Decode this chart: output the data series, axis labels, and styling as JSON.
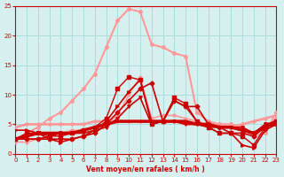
{
  "title": "",
  "xlabel": "Vent moyen/en rafales ( km/h )",
  "ylabel": "",
  "bg_color": "#d6f0f0",
  "grid_color": "#aadddd",
  "xmin": 0,
  "xmax": 23,
  "ymin": 0,
  "ymax": 25,
  "yticks": [
    0,
    5,
    10,
    15,
    20,
    25
  ],
  "xticks": [
    0,
    1,
    2,
    3,
    4,
    5,
    6,
    7,
    8,
    9,
    10,
    11,
    12,
    13,
    14,
    15,
    16,
    17,
    18,
    19,
    20,
    21,
    22,
    23
  ],
  "series": [
    {
      "x": [
        0,
        1,
        2,
        3,
        4,
        5,
        6,
        7,
        8,
        9,
        10,
        11,
        12,
        13,
        14,
        15,
        16,
        17,
        18,
        19,
        20,
        21,
        22,
        23
      ],
      "y": [
        2.5,
        2.5,
        2.5,
        2.5,
        2.5,
        2.5,
        3.0,
        3.5,
        5.0,
        7.0,
        9.0,
        11.0,
        12.0,
        5.5,
        9.0,
        8.0,
        8.0,
        5.0,
        4.5,
        3.5,
        3.5,
        3.0,
        4.5,
        5.0
      ],
      "color": "#cc0000",
      "lw": 1.2,
      "marker": "D",
      "ms": 2.5,
      "zorder": 5
    },
    {
      "x": [
        0,
        1,
        2,
        3,
        4,
        5,
        6,
        7,
        8,
        9,
        10,
        11,
        12,
        13,
        14,
        15,
        16,
        17,
        18,
        19,
        20,
        21,
        22,
        23
      ],
      "y": [
        4.0,
        4.0,
        3.5,
        2.5,
        2.0,
        2.5,
        3.0,
        4.0,
        5.5,
        8.0,
        10.5,
        12.5,
        5.5,
        5.5,
        9.0,
        8.0,
        5.5,
        4.5,
        3.5,
        3.5,
        1.5,
        1.0,
        4.0,
        5.0
      ],
      "color": "#cc0000",
      "lw": 1.2,
      "marker": ">",
      "ms": 2.5,
      "zorder": 5
    },
    {
      "x": [
        0,
        1,
        2,
        3,
        4,
        5,
        6,
        7,
        8,
        9,
        10,
        11,
        12,
        13,
        14,
        15,
        16,
        17,
        18,
        19,
        20,
        21,
        22,
        23
      ],
      "y": [
        2.5,
        3.5,
        3.5,
        3.0,
        3.0,
        3.5,
        4.0,
        4.5,
        6.0,
        11.0,
        13.0,
        12.5,
        5.0,
        5.5,
        9.5,
        8.5,
        5.5,
        4.5,
        3.5,
        3.5,
        3.0,
        1.5,
        4.5,
        5.5
      ],
      "color": "#cc0000",
      "lw": 1.0,
      "marker": "s",
      "ms": 2.5,
      "zorder": 4
    },
    {
      "x": [
        0,
        1,
        2,
        3,
        4,
        5,
        6,
        7,
        8,
        9,
        10,
        11,
        12,
        13,
        14,
        15,
        16,
        17,
        18,
        19,
        20,
        21,
        22,
        23
      ],
      "y": [
        4.5,
        5.0,
        5.0,
        5.0,
        5.0,
        5.0,
        5.0,
        5.5,
        5.5,
        5.5,
        5.5,
        5.5,
        5.5,
        5.5,
        5.5,
        5.0,
        5.0,
        5.0,
        5.0,
        4.5,
        5.0,
        5.5,
        6.0,
        6.5
      ],
      "color": "#ff9999",
      "lw": 2.0,
      "marker": "D",
      "ms": 2.0,
      "zorder": 3
    },
    {
      "x": [
        0,
        1,
        2,
        3,
        4,
        5,
        6,
        7,
        8,
        9,
        10,
        11,
        12,
        13,
        14,
        15,
        16,
        17,
        18,
        19,
        20,
        21,
        22,
        23
      ],
      "y": [
        2.5,
        2.5,
        2.5,
        3.0,
        3.5,
        3.5,
        3.5,
        4.0,
        4.5,
        6.0,
        8.0,
        9.5,
        5.0,
        5.5,
        5.5,
        5.0,
        5.0,
        4.5,
        4.5,
        4.5,
        4.5,
        3.5,
        5.0,
        5.5
      ],
      "color": "#cc0000",
      "lw": 1.2,
      "marker": "v",
      "ms": 2.5,
      "zorder": 4
    },
    {
      "x": [
        0,
        1,
        2,
        3,
        4,
        5,
        6,
        7,
        8,
        9,
        10,
        11,
        12,
        13,
        14,
        15,
        16,
        17,
        18,
        19,
        20,
        21,
        22,
        23
      ],
      "y": [
        2.0,
        2.0,
        2.5,
        3.0,
        3.5,
        4.0,
        4.0,
        4.5,
        5.0,
        6.5,
        10.0,
        13.0,
        6.0,
        6.5,
        6.5,
        6.0,
        5.5,
        5.0,
        5.0,
        5.0,
        4.5,
        3.5,
        4.5,
        6.0
      ],
      "color": "#ff9999",
      "lw": 1.2,
      "marker": "o",
      "ms": 2.0,
      "zorder": 3
    },
    {
      "x": [
        0,
        1,
        2,
        3,
        4,
        5,
        6,
        7,
        8,
        9,
        10,
        11,
        12,
        13,
        14,
        15,
        16,
        17,
        18,
        19,
        20,
        21,
        22,
        23
      ],
      "y": [
        2.5,
        3.5,
        4.5,
        6.0,
        7.0,
        9.0,
        11.0,
        13.5,
        18.0,
        22.5,
        24.5,
        24.0,
        18.5,
        18.0,
        17.0,
        16.5,
        7.0,
        5.5,
        5.0,
        5.0,
        4.5,
        3.0,
        3.5,
        7.0
      ],
      "color": "#ff9999",
      "lw": 1.5,
      "marker": "o",
      "ms": 2.5,
      "zorder": 3
    },
    {
      "x": [
        0,
        1,
        2,
        3,
        4,
        5,
        6,
        7,
        8,
        9,
        10,
        11,
        12,
        13,
        14,
        15,
        16,
        17,
        18,
        19,
        20,
        21,
        22,
        23
      ],
      "y": [
        2.5,
        3.0,
        3.5,
        3.5,
        3.5,
        3.5,
        4.0,
        4.5,
        5.0,
        5.5,
        5.5,
        5.5,
        5.5,
        5.5,
        5.5,
        5.5,
        5.0,
        5.0,
        4.5,
        4.5,
        4.0,
        3.5,
        4.5,
        5.5
      ],
      "color": "#cc0000",
      "lw": 2.5,
      "marker": null,
      "ms": 0,
      "zorder": 6
    }
  ]
}
